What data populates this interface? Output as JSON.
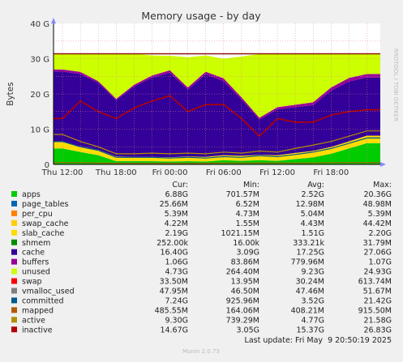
{
  "chart_data": {
    "type": "area",
    "title": "Memory usage - by day",
    "ylabel": "Bytes",
    "ylim": [
      0,
      40
    ],
    "y_unit": "G",
    "yticks": [
      "0",
      "10 G",
      "20 G",
      "30 G",
      "40 G"
    ],
    "x_ticks": [
      "Thu 12:00",
      "Thu 18:00",
      "Fri 00:00",
      "Fri 06:00",
      "Fri 12:00",
      "Fri 18:00"
    ],
    "total_memory_line": 31.4,
    "grid": true,
    "watermark": "RRDTOOL / TOBI OETIKER",
    "columns": [
      "Cur:",
      "Min:",
      "Avg:",
      "Max:"
    ],
    "x_hours": [
      0,
      2,
      4,
      6,
      8,
      10,
      12,
      14,
      16,
      18,
      20,
      22,
      24,
      26,
      28,
      30,
      32,
      34
    ],
    "series": [
      {
        "name": "apps",
        "color": "#00cc00",
        "cur": "6.88G",
        "min": "701.57M",
        "avg": "2.52G",
        "max": "20.36G",
        "values": [
          4.5,
          3.5,
          2.6,
          0.9,
          0.9,
          0.9,
          0.8,
          0.9,
          0.8,
          1.2,
          1.0,
          1.2,
          1.0,
          1.5,
          2.0,
          3.0,
          4.5,
          6.0
        ]
      },
      {
        "name": "page_tables",
        "color": "#0066b3",
        "cur": "25.66M",
        "min": "6.52M",
        "avg": "12.98M",
        "max": "48.98M",
        "values": [
          0.03,
          0.03,
          0.02,
          0.01,
          0.01,
          0.01,
          0.01,
          0.01,
          0.01,
          0.01,
          0.01,
          0.01,
          0.01,
          0.01,
          0.01,
          0.02,
          0.02,
          0.03
        ]
      },
      {
        "name": "per_cpu",
        "color": "#ff8000",
        "cur": "5.39M",
        "min": "4.73M",
        "avg": "5.04M",
        "max": "5.39M",
        "values": [
          0.01,
          0.01,
          0.01,
          0.01,
          0.01,
          0.01,
          0.01,
          0.01,
          0.01,
          0.01,
          0.01,
          0.01,
          0.01,
          0.01,
          0.01,
          0.01,
          0.01,
          0.01
        ]
      },
      {
        "name": "swap_cache",
        "color": "#ffcc00",
        "cur": "4.22M",
        "min": "1.55M",
        "avg": "4.43M",
        "max": "44.42M",
        "values": [
          0.01,
          0.01,
          0.01,
          0.01,
          0.01,
          0.01,
          0.01,
          0.01,
          0.01,
          0.01,
          0.01,
          0.01,
          0.01,
          0.01,
          0.01,
          0.01,
          0.01,
          0.01
        ]
      },
      {
        "name": "slab_cache",
        "color": "#ffdd00",
        "cur": "2.19G",
        "min": "1021.15M",
        "avg": "1.51G",
        "max": "2.20G",
        "values": [
          1.8,
          1.6,
          1.5,
          1.3,
          1.2,
          1.2,
          1.2,
          1.3,
          1.3,
          1.4,
          1.4,
          1.5,
          1.6,
          1.7,
          1.8,
          1.9,
          2.0,
          2.1
        ]
      },
      {
        "name": "shmem",
        "color": "#008f00",
        "cur": "252.00k",
        "min": "16.00k",
        "avg": "333.21k",
        "max": "31.79M",
        "values": [
          0,
          0,
          0,
          0,
          0,
          0,
          0,
          0,
          0,
          0,
          0,
          0,
          0,
          0,
          0,
          0,
          0,
          0
        ]
      },
      {
        "name": "cache",
        "color": "#330099",
        "cur": "16.40G",
        "min": "3.09G",
        "avg": "17.25G",
        "max": "27.06G",
        "values": [
          20.0,
          20.5,
          19.0,
          16.0,
          20.0,
          22.5,
          24.0,
          19.0,
          23.5,
          21.0,
          16.0,
          10.0,
          13.0,
          13.0,
          13.0,
          16.0,
          17.0,
          16.5
        ]
      },
      {
        "name": "buffers",
        "color": "#990099",
        "cur": "1.06G",
        "min": "83.86M",
        "avg": "779.96M",
        "max": "1.07G",
        "values": [
          0.6,
          0.6,
          0.5,
          0.4,
          0.5,
          0.6,
          0.7,
          0.6,
          0.7,
          0.8,
          0.6,
          0.5,
          0.6,
          0.7,
          0.8,
          0.9,
          1.0,
          1.0
        ]
      },
      {
        "name": "unused",
        "color": "#ccff00",
        "cur": "4.73G",
        "min": "264.40M",
        "avg": "9.23G",
        "max": "24.93G",
        "values": [
          4.5,
          5.2,
          7.8,
          12.8,
          8.8,
          5.7,
          4.1,
          8.6,
          4.6,
          5.6,
          11.6,
          18.1,
          15.1,
          14.5,
          13.8,
          9.6,
          6.9,
          5.8
        ]
      },
      {
        "name": "swap",
        "color": "#ff0000",
        "cur": "33.50M",
        "min": "13.95M",
        "avg": "30.24M",
        "max": "613.74M"
      },
      {
        "name": "vmalloc_used",
        "color": "#808080",
        "cur": "47.95M",
        "min": "46.50M",
        "avg": "47.46M",
        "max": "51.67M"
      },
      {
        "name": "committed",
        "color": "#005a8c",
        "cur": "7.24G",
        "min": "925.96M",
        "avg": "3.52G",
        "max": "21.42G",
        "values": [
          6.5,
          5.0,
          4.0,
          2.0,
          2.0,
          2.0,
          1.8,
          2.0,
          1.8,
          2.2,
          2.0,
          2.5,
          2.2,
          2.8,
          3.5,
          4.5,
          6.0,
          7.5
        ]
      },
      {
        "name": "mapped",
        "color": "#b35a00",
        "cur": "485.55M",
        "min": "164.06M",
        "avg": "408.21M",
        "max": "915.50M",
        "values": [
          0.5,
          0.5,
          0.4,
          0.3,
          0.3,
          0.3,
          0.3,
          0.3,
          0.3,
          0.4,
          0.4,
          0.4,
          0.4,
          0.4,
          0.4,
          0.5,
          0.5,
          0.5
        ]
      },
      {
        "name": "active",
        "color": "#b38f00",
        "cur": "9.30G",
        "min": "739.29M",
        "avg": "4.77G",
        "max": "21.58G",
        "values": [
          8.5,
          6.5,
          5.0,
          3.0,
          3.0,
          3.2,
          3.0,
          3.2,
          3.0,
          3.5,
          3.2,
          3.8,
          3.5,
          4.5,
          5.5,
          6.5,
          8.0,
          9.5
        ]
      },
      {
        "name": "inactive",
        "color": "#b30000",
        "cur": "14.67G",
        "min": "3.05G",
        "avg": "15.37G",
        "max": "26.83G",
        "values": [
          13.0,
          18.0,
          15.0,
          13.0,
          16.0,
          18.0,
          19.5,
          15.0,
          17.0,
          17.0,
          13.0,
          8.0,
          13.0,
          12.0,
          12.0,
          14.0,
          15.0,
          15.5
        ]
      }
    ]
  },
  "footer": {
    "last_update_label": "Last update:",
    "last_update_value": "Fri May  9 20:50:19 2025",
    "version": "Munin 2.0.73"
  }
}
